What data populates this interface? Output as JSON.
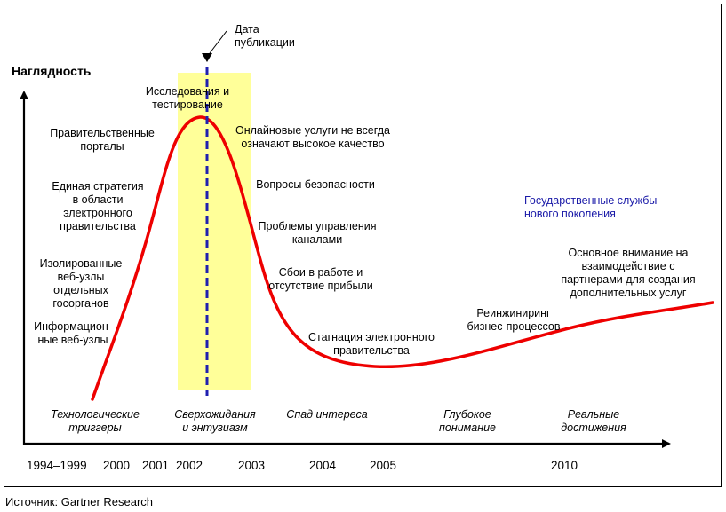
{
  "y_axis_label": "Наглядность",
  "publication_marker": "Дата\nпубликации",
  "left_labels": [
    "Правительственные\nпорталы",
    "Единая стратегия\nв области\nэлектронного\nправительства",
    "Изолированные\nвеб-узлы\nотдельных\nгосорганов",
    "Информацион-\nные веб-узлы"
  ],
  "peak_label": "Исследования и\nтестирование",
  "decline_labels": [
    "Онлайновые услуги не всегда\nозначают высокое качество",
    "Вопросы безопасности",
    "Проблемы управления\nканалами",
    "Сбои в работе и\nотсутствие прибыли"
  ],
  "trough_label": "Стагнация электронного\nправительства",
  "slope_label": "Реинжиниринг\nбизнес-процессов",
  "plateau_label": "Основное внимание на\nвзаимодействие с\nпартнерами для создания\nдополнительных услуг",
  "next_gen_label": "Государственные службы\nнового поколения",
  "phases": [
    "Технологические\nтриггеры",
    "Сверхожидания\nи энтузиазм",
    "Спад интереса",
    "Глубокое\nпонимание",
    "Реальные\nдостижения"
  ],
  "years": [
    "1994–1999",
    "2000",
    "2001",
    "2002",
    "2003",
    "2004",
    "2005",
    "2010"
  ],
  "source": "Источник: Gartner Research",
  "colors": {
    "curve": "#ee0000",
    "highlight": "#ffff99",
    "publication_line": "#1f1fb0",
    "next_gen_text": "#1a1aa8"
  }
}
